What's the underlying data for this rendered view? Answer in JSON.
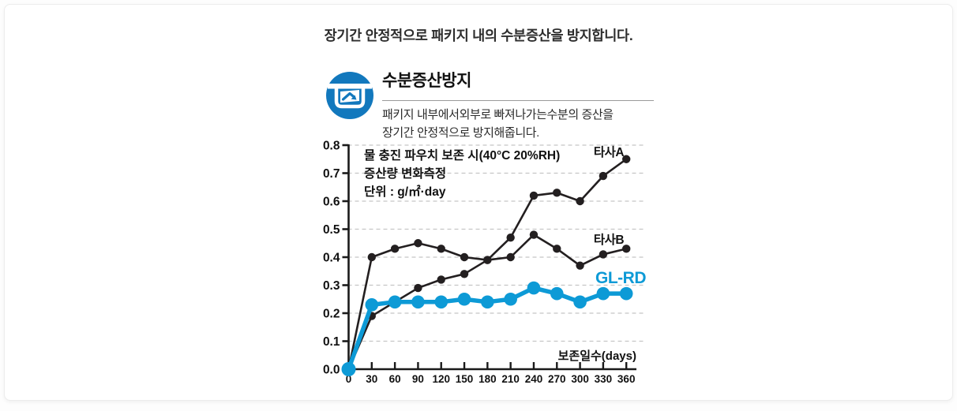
{
  "page": {
    "title": "장기간 안정적으로 패키지 내의 수분증산을 방지합니다."
  },
  "feature": {
    "icon": "moisture-escape-pouch-icon",
    "icon_color": "#1278bd",
    "heading": "수분증산방지",
    "description_line1": "패키지 내부에서외부로 빠져나가는수분의 증산을",
    "description_line2": "장기간 안정적으로 방지해줍니다."
  },
  "chart_data": {
    "type": "line",
    "annotation_lines": [
      "물 충진 파우치 보존 시(40°C 20%RH)",
      "증산량 변화측정",
      "단위 : g/㎡·day"
    ],
    "xlabel": "보존일수(days)",
    "x": [
      0,
      30,
      60,
      90,
      120,
      150,
      180,
      210,
      240,
      270,
      300,
      330,
      360
    ],
    "xlim": [
      0,
      375
    ],
    "ylim": [
      0,
      0.8
    ],
    "ytick_step": 0.1,
    "grid": "dashed-horizontal",
    "grid_color": "#c5c5c5",
    "axis_color": "#1a1a1a",
    "series": [
      {
        "name": "타사A",
        "color": "#231f20",
        "emphasis": false,
        "values": [
          0.0,
          0.19,
          0.24,
          0.29,
          0.32,
          0.34,
          0.39,
          0.47,
          0.62,
          0.63,
          0.6,
          0.69,
          0.75
        ]
      },
      {
        "name": "타사B",
        "color": "#231f20",
        "emphasis": false,
        "values": [
          0.0,
          0.4,
          0.43,
          0.45,
          0.43,
          0.4,
          0.39,
          0.4,
          0.48,
          0.43,
          0.37,
          0.41,
          0.43
        ]
      },
      {
        "name": "GL-RD",
        "color": "#0d9ad6",
        "emphasis": true,
        "values": [
          0.0,
          0.23,
          0.24,
          0.24,
          0.24,
          0.25,
          0.24,
          0.25,
          0.29,
          0.27,
          0.24,
          0.27,
          0.27
        ]
      }
    ]
  }
}
